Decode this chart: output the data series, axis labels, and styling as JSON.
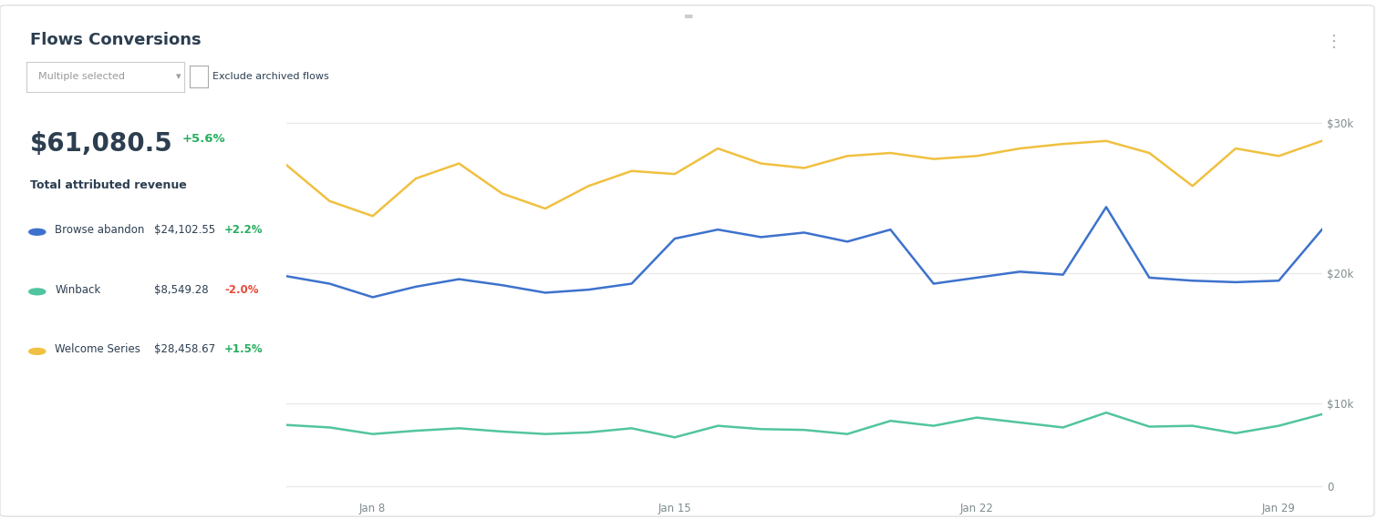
{
  "title": "Flows Conversions",
  "subtitle_amount": "$61,080.5",
  "subtitle_pct": "+5.6%",
  "subtitle_label": "Total attributed revenue",
  "dropdown_label": "Multiple selected",
  "checkbox_label": "Exclude archived flows",
  "legend": [
    {
      "label": "Browse abandon",
      "value": "$24,102.55",
      "pct": "+2.2%",
      "color": "#3d72cc",
      "pct_color": "#27ae60"
    },
    {
      "label": "Winback",
      "value": "$8,549.28",
      "pct": "-2.0%",
      "color": "#52c4a0",
      "pct_color": "#e74c3c"
    },
    {
      "label": "Welcome Series",
      "value": "$28,458.67",
      "pct": "+1.5%",
      "color": "#f0c040",
      "pct_color": "#27ae60"
    }
  ],
  "x_labels": [
    "Jan 8",
    "Jan 15",
    "Jan 22",
    "Jan 29"
  ],
  "x_ticks": [
    2,
    9,
    16,
    23
  ],
  "n_points": 25,
  "browse_abandon": [
    19800,
    19300,
    18400,
    19100,
    19600,
    19200,
    18700,
    18900,
    19300,
    22300,
    22900,
    22400,
    22700,
    22100,
    22900,
    19300,
    19700,
    20100,
    19900,
    24400,
    19700,
    19500,
    19400,
    19500,
    22900
  ],
  "winback": [
    7400,
    7100,
    6300,
    6700,
    7000,
    6600,
    6300,
    6500,
    7000,
    5900,
    7300,
    6900,
    6800,
    6300,
    7900,
    7300,
    8300,
    7700,
    7100,
    8900,
    7200,
    7300,
    6400,
    7300,
    8700
  ],
  "welcome_series": [
    27200,
    24800,
    23800,
    26300,
    27300,
    25300,
    24300,
    25800,
    26800,
    26600,
    28300,
    27300,
    27000,
    27800,
    28000,
    27600,
    27800,
    28300,
    28600,
    28800,
    28000,
    25800,
    28300,
    27800,
    28800
  ],
  "bg_color": "#ffffff",
  "grid_color": "#e8e8e8",
  "text_dark": "#2c3e50",
  "text_gray": "#7f8c8d",
  "border_color": "#e0e0e0"
}
